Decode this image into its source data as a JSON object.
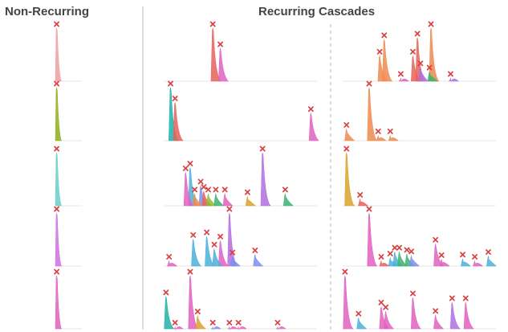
{
  "headers": {
    "non_recurring": "Non-Recurring",
    "recurring": "Recurring Cascades"
  },
  "marker_color": "#d94040",
  "palette": [
    "#e8615a",
    "#f08a50",
    "#d9a32a",
    "#8fbc2a",
    "#3cb371",
    "#20b2aa",
    "#4ab0d9",
    "#7b8ff0",
    "#b06ee0",
    "#e060c0"
  ],
  "chart_data": [
    {
      "type": "area",
      "panel": "non-recurring",
      "row": 1,
      "peaks": [
        {
          "x": 0.02,
          "y": 1.0,
          "color": "#f0a0a0"
        }
      ]
    },
    {
      "type": "area",
      "panel": "non-recurring",
      "row": 2,
      "peaks": [
        {
          "x": 0.02,
          "y": 1.0,
          "color": "#8fae1b"
        }
      ]
    },
    {
      "type": "area",
      "panel": "non-recurring",
      "row": 3,
      "peaks": [
        {
          "x": 0.02,
          "y": 1.0,
          "color": "#66d0c8"
        }
      ]
    },
    {
      "type": "area",
      "panel": "non-recurring",
      "row": 4,
      "peaks": [
        {
          "x": 0.02,
          "y": 1.0,
          "color": "#d070e0"
        }
      ]
    },
    {
      "type": "area",
      "panel": "non-recurring",
      "row": 5,
      "peaks": [
        {
          "x": 0.02,
          "y": 1.0,
          "color": "#e060c0"
        }
      ]
    },
    {
      "type": "area",
      "panel": "recurring-a",
      "row": 1,
      "peaks": [
        {
          "x": 0.32,
          "y": 1.0,
          "color": "#e8615a"
        },
        {
          "x": 0.37,
          "y": 0.62,
          "color": "#e060c0"
        }
      ]
    },
    {
      "type": "area",
      "panel": "recurring-a",
      "row": 2,
      "peaks": [
        {
          "x": 0.04,
          "y": 1.0,
          "color": "#20b2aa"
        },
        {
          "x": 0.07,
          "y": 0.72,
          "color": "#e8615a"
        },
        {
          "x": 0.97,
          "y": 0.52,
          "color": "#e060c0"
        }
      ]
    },
    {
      "type": "area",
      "panel": "recurring-a",
      "row": 3,
      "peaks": [
        {
          "x": 0.65,
          "y": 1.0,
          "color": "#b06ee0"
        },
        {
          "x": 0.17,
          "y": 0.72,
          "color": "#4ab0d9"
        },
        {
          "x": 0.14,
          "y": 0.63,
          "color": "#e060c0"
        },
        {
          "x": 0.24,
          "y": 0.38,
          "color": "#7b8ff0"
        },
        {
          "x": 0.26,
          "y": 0.28,
          "color": "#e8615a"
        },
        {
          "x": 0.2,
          "y": 0.23,
          "color": "#f08a50"
        },
        {
          "x": 0.29,
          "y": 0.23,
          "color": "#8fbc2a"
        },
        {
          "x": 0.34,
          "y": 0.23,
          "color": "#3cb371"
        },
        {
          "x": 0.4,
          "y": 0.23,
          "color": "#e060c0"
        },
        {
          "x": 0.55,
          "y": 0.18,
          "color": "#d9a32a"
        },
        {
          "x": 0.8,
          "y": 0.23,
          "color": "#3cb371"
        }
      ]
    },
    {
      "type": "area",
      "panel": "recurring-a",
      "row": 4,
      "peaks": [
        {
          "x": 0.43,
          "y": 1.0,
          "color": "#b06ee0"
        },
        {
          "x": 0.28,
          "y": 0.56,
          "color": "#4ab0d9"
        },
        {
          "x": 0.19,
          "y": 0.51,
          "color": "#4ab0d9"
        },
        {
          "x": 0.37,
          "y": 0.48,
          "color": "#e060c0"
        },
        {
          "x": 0.33,
          "y": 0.33,
          "color": "#4ab0d9"
        },
        {
          "x": 0.03,
          "y": 0.1,
          "color": "#e060c0"
        },
        {
          "x": 0.45,
          "y": 0.18,
          "color": "#7b8ff0"
        },
        {
          "x": 0.6,
          "y": 0.22,
          "color": "#7b8ff0"
        }
      ]
    },
    {
      "type": "area",
      "panel": "recurring-a",
      "row": 5,
      "peaks": [
        {
          "x": 0.17,
          "y": 1.0,
          "color": "#e060c0"
        },
        {
          "x": 0.01,
          "y": 0.61,
          "color": "#20b2aa"
        },
        {
          "x": 0.22,
          "y": 0.25,
          "color": "#d9a32a"
        },
        {
          "x": 0.07,
          "y": 0.04,
          "color": "#e060c0"
        },
        {
          "x": 0.32,
          "y": 0.04,
          "color": "#7b8ff0"
        },
        {
          "x": 0.43,
          "y": 0.04,
          "color": "#e060c0"
        },
        {
          "x": 0.49,
          "y": 0.04,
          "color": "#e060c0"
        },
        {
          "x": 0.75,
          "y": 0.04,
          "color": "#e060c0"
        }
      ]
    },
    {
      "type": "area",
      "panel": "recurring-b",
      "row": 1,
      "peaks": [
        {
          "x": 0.58,
          "y": 1.0,
          "color": "#f08a50"
        },
        {
          "x": 0.49,
          "y": 0.82,
          "color": "#e8615a"
        },
        {
          "x": 0.27,
          "y": 0.79,
          "color": "#f08a50"
        },
        {
          "x": 0.24,
          "y": 0.48,
          "color": "#f08a50"
        },
        {
          "x": 0.46,
          "y": 0.48,
          "color": "#e8615a"
        },
        {
          "x": 0.51,
          "y": 0.26,
          "color": "#b06ee0"
        },
        {
          "x": 0.57,
          "y": 0.18,
          "color": "#3cb371"
        },
        {
          "x": 0.38,
          "y": 0.06,
          "color": "#e060c0"
        },
        {
          "x": 0.71,
          "y": 0.06,
          "color": "#b06ee0"
        }
      ]
    },
    {
      "type": "area",
      "panel": "recurring-b",
      "row": 2,
      "peaks": [
        {
          "x": 0.17,
          "y": 1.0,
          "color": "#f08a50"
        },
        {
          "x": 0.02,
          "y": 0.22,
          "color": "#f08a50"
        },
        {
          "x": 0.23,
          "y": 0.1,
          "color": "#f08a50"
        },
        {
          "x": 0.31,
          "y": 0.1,
          "color": "#f08a50"
        }
      ]
    },
    {
      "type": "area",
      "panel": "recurring-b",
      "row": 3,
      "peaks": [
        {
          "x": 0.02,
          "y": 1.0,
          "color": "#d9a32a"
        },
        {
          "x": 0.11,
          "y": 0.13,
          "color": "#e8615a"
        }
      ]
    },
    {
      "type": "area",
      "panel": "recurring-b",
      "row": 4,
      "peaks": [
        {
          "x": 0.17,
          "y": 1.0,
          "color": "#e060c0"
        },
        {
          "x": 0.61,
          "y": 0.42,
          "color": "#e060c0"
        },
        {
          "x": 0.34,
          "y": 0.27,
          "color": "#4ab0d9"
        },
        {
          "x": 0.37,
          "y": 0.27,
          "color": "#3cb371"
        },
        {
          "x": 0.42,
          "y": 0.23,
          "color": "#3cb371"
        },
        {
          "x": 0.45,
          "y": 0.2,
          "color": "#7b8ff0"
        },
        {
          "x": 0.65,
          "y": 0.13,
          "color": "#e060c0"
        },
        {
          "x": 0.25,
          "y": 0.1,
          "color": "#e8615a"
        },
        {
          "x": 0.31,
          "y": 0.16,
          "color": "#4ab0d9"
        },
        {
          "x": 0.79,
          "y": 0.14,
          "color": "#4ab0d9"
        },
        {
          "x": 0.87,
          "y": 0.1,
          "color": "#e060c0"
        },
        {
          "x": 0.96,
          "y": 0.19,
          "color": "#4ab0d9"
        }
      ]
    },
    {
      "type": "area",
      "panel": "recurring-b",
      "row": 5,
      "peaks": [
        {
          "x": 0.01,
          "y": 1.0,
          "color": "#e060c0"
        },
        {
          "x": 0.46,
          "y": 0.59,
          "color": "#e060c0"
        },
        {
          "x": 0.72,
          "y": 0.5,
          "color": "#b06ee0"
        },
        {
          "x": 0.81,
          "y": 0.5,
          "color": "#e060c0"
        },
        {
          "x": 0.25,
          "y": 0.42,
          "color": "#e060c0"
        },
        {
          "x": 0.28,
          "y": 0.33,
          "color": "#e060c0"
        },
        {
          "x": 0.61,
          "y": 0.26,
          "color": "#e060c0"
        },
        {
          "x": 0.1,
          "y": 0.21,
          "color": "#4ab0d9"
        }
      ]
    }
  ]
}
